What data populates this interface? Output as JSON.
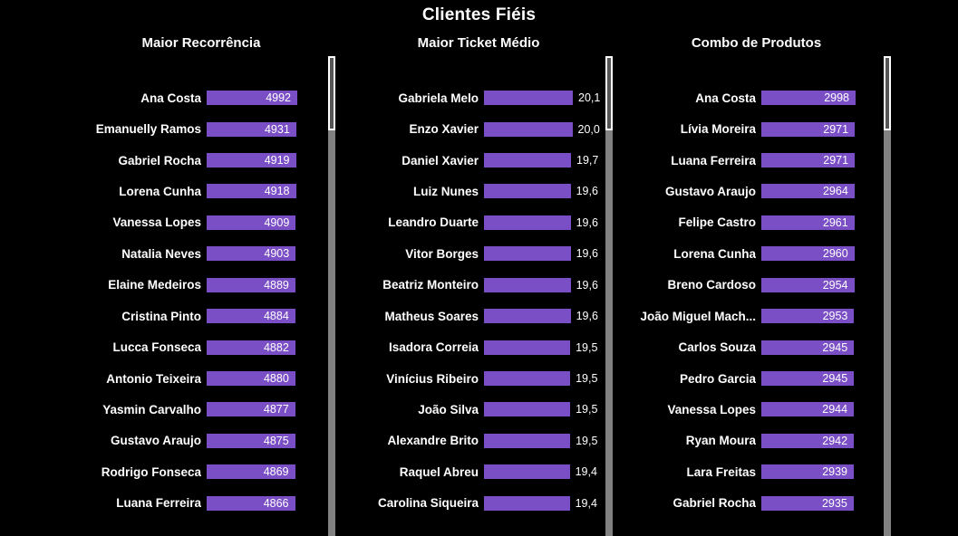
{
  "page_title": "Clientes Fiéis",
  "colors": {
    "background": "#000000",
    "text": "#FFFFFF",
    "bar": "#7A4EC5",
    "scrollbar_track": "#818181",
    "scrollbar_thumb": "#555555",
    "scrollbar_thumb_border": "#FFFFFF"
  },
  "chart_data": [
    {
      "type": "bar",
      "orientation": "horizontal",
      "title": "Maior Recorrência",
      "value_label_position": "inside",
      "xlim": [
        0,
        4992
      ],
      "legend": "none",
      "grid": false,
      "categories": [
        "Ana Costa",
        "Emanuelly Ramos",
        "Gabriel Rocha",
        "Lorena Cunha",
        "Vanessa Lopes",
        "Natalia Neves",
        "Elaine Medeiros",
        "Cristina Pinto",
        "Lucca Fonseca",
        "Antonio Teixeira",
        "Yasmin Carvalho",
        "Gustavo Araujo",
        "Rodrigo Fonseca",
        "Luana Ferreira"
      ],
      "values": [
        4992,
        4931,
        4919,
        4918,
        4909,
        4903,
        4889,
        4884,
        4882,
        4880,
        4877,
        4875,
        4869,
        4866
      ],
      "value_labels": [
        "4992",
        "4931",
        "4919",
        "4918",
        "4909",
        "4903",
        "4889",
        "4884",
        "4882",
        "4880",
        "4877",
        "4875",
        "4869",
        "4866"
      ]
    },
    {
      "type": "bar",
      "orientation": "horizontal",
      "title": "Maior Ticket Médio",
      "value_label_position": "outside",
      "xlim": [
        0,
        20.1
      ],
      "legend": "none",
      "grid": false,
      "categories": [
        "Gabriela Melo",
        "Enzo Xavier",
        "Daniel Xavier",
        "Luiz Nunes",
        "Leandro Duarte",
        "Vitor Borges",
        "Beatriz Monteiro",
        "Matheus Soares",
        "Isadora Correia",
        "Vinícius Ribeiro",
        "João Silva",
        "Alexandre Brito",
        "Raquel Abreu",
        "Carolina Siqueira"
      ],
      "values": [
        20.1,
        20.0,
        19.7,
        19.6,
        19.6,
        19.6,
        19.6,
        19.6,
        19.5,
        19.5,
        19.5,
        19.5,
        19.4,
        19.4
      ],
      "value_labels": [
        "20,1",
        "20,0",
        "19,7",
        "19,6",
        "19,6",
        "19,6",
        "19,6",
        "19,6",
        "19,5",
        "19,5",
        "19,5",
        "19,5",
        "19,4",
        "19,4"
      ]
    },
    {
      "type": "bar",
      "orientation": "horizontal",
      "title": "Combo de Produtos",
      "value_label_position": "inside",
      "xlim": [
        0,
        2998
      ],
      "legend": "none",
      "grid": false,
      "categories": [
        "Ana Costa",
        "Lívia Moreira",
        "Luana Ferreira",
        "Gustavo Araujo",
        "Felipe Castro",
        "Lorena Cunha",
        "Breno Cardoso",
        "João Miguel Mach...",
        "Carlos Souza",
        "Pedro Garcia",
        "Vanessa Lopes",
        "Ryan Moura",
        "Lara Freitas",
        "Gabriel Rocha"
      ],
      "values": [
        2998,
        2971,
        2971,
        2964,
        2961,
        2960,
        2954,
        2953,
        2945,
        2945,
        2944,
        2942,
        2939,
        2935
      ],
      "value_labels": [
        "2998",
        "2971",
        "2971",
        "2964",
        "2961",
        "2960",
        "2954",
        "2953",
        "2945",
        "2945",
        "2944",
        "2942",
        "2939",
        "2935"
      ]
    }
  ]
}
